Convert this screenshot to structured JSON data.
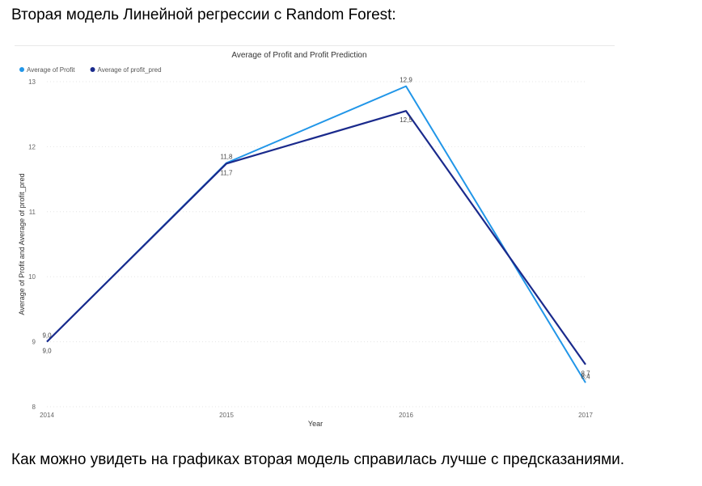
{
  "page": {
    "heading": "Вторая модель Линейной регрессии с Random Forest:",
    "footer": "Как можно увидеть на графиках вторая модель справилась лучше с предсказаниями."
  },
  "chart_data": {
    "type": "line",
    "title": "Average of Profit and Profit Prediction",
    "xlabel": "Year",
    "ylabel": "Average of Profit and Average of profit_pred",
    "x": [
      2014,
      2015,
      2016,
      2017
    ],
    "x_tick_labels": [
      "2014",
      "2015",
      "2016",
      "2017"
    ],
    "y_ticks": [
      8,
      9,
      10,
      11,
      12,
      13
    ],
    "y_tick_labels": [
      "8",
      "9",
      "10",
      "11",
      "12",
      "13"
    ],
    "ylim": [
      8,
      13
    ],
    "grid": true,
    "legend_position": "top-left",
    "series": [
      {
        "name": "Average of Profit",
        "color": "#2196e8",
        "values": [
          9.0,
          11.75,
          12.93,
          8.37
        ],
        "data_labels": [
          "9,0",
          "11,8",
          "12,9",
          "8,4"
        ]
      },
      {
        "name": "Average of profit_pred",
        "color": "#1a2a8c",
        "values": [
          9.0,
          11.74,
          12.55,
          8.65
        ],
        "data_labels": [
          "9,0",
          "11,7",
          "12,5",
          "8,7"
        ]
      }
    ]
  }
}
